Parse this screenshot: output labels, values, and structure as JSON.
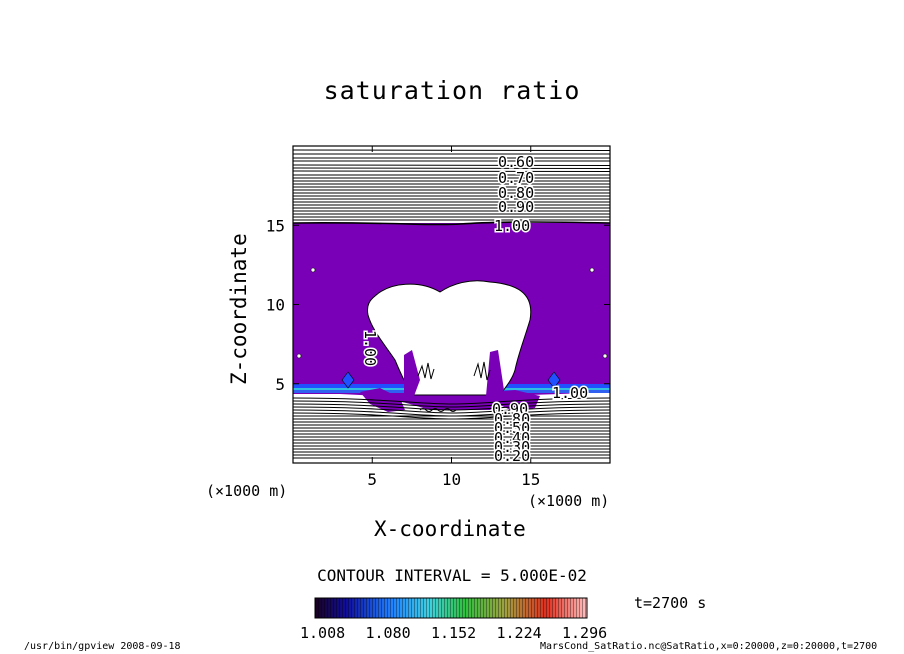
{
  "chart_data": {
    "type": "contour",
    "title": "saturation ratio",
    "xlabel": "X-coordinate",
    "ylabel": "Z-coordinate",
    "xunit": "(×1000 m)",
    "yunit": "(×1000 m)",
    "xlim": [
      0,
      20
    ],
    "ylim": [
      0,
      20
    ],
    "xticks": [
      5,
      10,
      15
    ],
    "yticks": [
      5,
      10,
      15
    ],
    "contour_labels": [
      "0.60",
      "0.70",
      "0.80",
      "0.90",
      "1.00",
      "1.00",
      "1.00",
      "0.90",
      "0.80",
      "0.50",
      "0.40",
      "0.30",
      "0.20"
    ],
    "contour_interval": "CONTOUR INTERVAL = 5.000E-02",
    "colorbar": {
      "ticks": [
        "1.008",
        "1.080",
        "1.152",
        "1.224",
        "1.296"
      ],
      "range": [
        1.008,
        1.296
      ]
    },
    "fill_color": "#7a00b8",
    "time": "t=2700 s"
  },
  "footer": {
    "left": "/usr/bin/gpview  2008-09-18",
    "right": "MarsCond_SatRatio.nc@SatRatio,x=0:20000,z=0:20000,t=2700"
  }
}
